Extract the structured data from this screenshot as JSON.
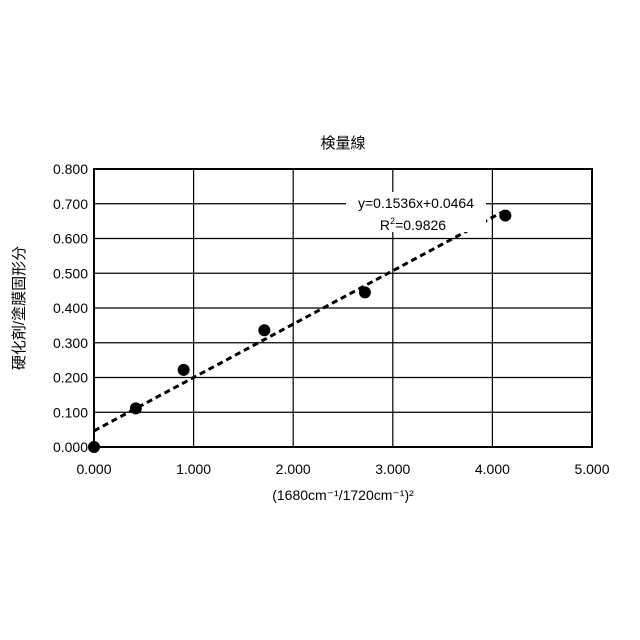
{
  "chart_data": {
    "type": "scatter",
    "title": "検量線",
    "xlabel": "(1680cm⁻¹/1720cm⁻¹)²",
    "ylabel": "硬化剤/塗膜固形分",
    "xlim": [
      0,
      5
    ],
    "ylim": [
      0,
      0.8
    ],
    "xticks": [
      "0.000",
      "1.000",
      "2.000",
      "3.000",
      "4.000",
      "5.000"
    ],
    "yticks": [
      "0.000",
      "0.100",
      "0.200",
      "0.300",
      "0.400",
      "0.500",
      "0.600",
      "0.700",
      "0.800"
    ],
    "grid": true,
    "points": [
      {
        "x": 0.0,
        "y": 0.0
      },
      {
        "x": 0.42,
        "y": 0.111
      },
      {
        "x": 0.9,
        "y": 0.222
      },
      {
        "x": 1.71,
        "y": 0.336
      },
      {
        "x": 2.72,
        "y": 0.445
      },
      {
        "x": 4.13,
        "y": 0.666
      }
    ],
    "trendline": {
      "type": "linear",
      "slope": 0.1536,
      "intercept": 0.0464,
      "equation": "y=0.1536x+0.0464",
      "r2_label": "R",
      "r2_sup": "2",
      "r2_value": "=0.9826",
      "style": "dashed"
    },
    "colors": {
      "marker": "#000000",
      "grid": "#000000"
    }
  }
}
